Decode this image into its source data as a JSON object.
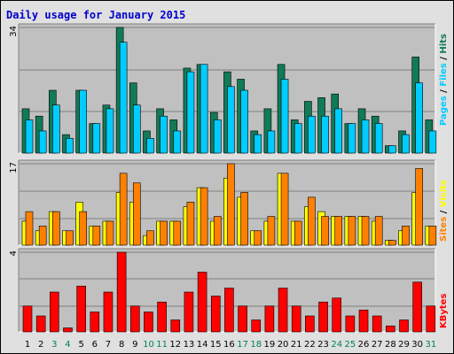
{
  "title": "Daily usage for January 2015",
  "colors": {
    "background": "#e0e0e0",
    "panel": "#c0c0c0",
    "gridline": "#808080",
    "hits": "#117a57",
    "files": "#00ccff",
    "pages": "#00ccff",
    "sites": "#ff8000",
    "visits": "#ffff00",
    "kbytes": "#ff0000",
    "weekend_day": "#00805c",
    "weekday": "#000000",
    "title": "#0000cc"
  },
  "chart_data": [
    {
      "type": "bar",
      "panel": "hits-files-pages",
      "max_label": "34",
      "ylim": [
        0,
        34
      ],
      "legend": [
        {
          "label": "Pages",
          "color": "#00ccff"
        },
        {
          "label": "Files",
          "color": "#00ccff"
        },
        {
          "label": "Hits",
          "color": "#117a57"
        }
      ],
      "categories": [
        "1",
        "2",
        "3",
        "4",
        "5",
        "6",
        "7",
        "8",
        "9",
        "10",
        "11",
        "12",
        "13",
        "14",
        "15",
        "16",
        "17",
        "18",
        "19",
        "20",
        "21",
        "22",
        "23",
        "24",
        "25",
        "26",
        "27",
        "28",
        "29",
        "30",
        "31"
      ],
      "series": [
        {
          "name": "Hits",
          "values": [
            12,
            10,
            17,
            5,
            17,
            8,
            13,
            34,
            19,
            6,
            12,
            9,
            23,
            24,
            11,
            22,
            20,
            6,
            12,
            24,
            9,
            14,
            15,
            16,
            8,
            12,
            10,
            2,
            6,
            26,
            9
          ]
        },
        {
          "name": "Files",
          "values": [
            9,
            6,
            13,
            4,
            17,
            8,
            12,
            30,
            13,
            4,
            10,
            6,
            22,
            24,
            9,
            18,
            17,
            5,
            6,
            20,
            8,
            10,
            10,
            12,
            8,
            9,
            8,
            2,
            5,
            19,
            6
          ]
        },
        {
          "name": "Pages",
          "values": [
            9,
            6,
            13,
            4,
            17,
            8,
            12,
            30,
            13,
            4,
            10,
            6,
            22,
            24,
            9,
            18,
            17,
            5,
            6,
            20,
            8,
            10,
            10,
            12,
            8,
            9,
            8,
            2,
            5,
            19,
            6
          ]
        }
      ]
    },
    {
      "type": "bar",
      "panel": "sites-visits",
      "max_label": "17",
      "ylim": [
        0,
        17
      ],
      "legend": [
        {
          "label": "Sites",
          "color": "#ff8000"
        },
        {
          "label": "Visits",
          "color": "#ffff00"
        }
      ],
      "categories": [
        "1",
        "2",
        "3",
        "4",
        "5",
        "6",
        "7",
        "8",
        "9",
        "10",
        "11",
        "12",
        "13",
        "14",
        "15",
        "16",
        "17",
        "18",
        "19",
        "20",
        "21",
        "22",
        "23",
        "24",
        "25",
        "26",
        "27",
        "28",
        "29",
        "30",
        "31"
      ],
      "series": [
        {
          "name": "Visits",
          "values": [
            5,
            3,
            7,
            3,
            9,
            4,
            5,
            11,
            9,
            2,
            5,
            5,
            8,
            12,
            5,
            14,
            10,
            3,
            5,
            15,
            5,
            8,
            7,
            6,
            6,
            6,
            5,
            1,
            3,
            11,
            4
          ]
        },
        {
          "name": "Sites",
          "values": [
            7,
            4,
            7,
            3,
            7,
            4,
            5,
            15,
            13,
            3,
            5,
            5,
            9,
            12,
            6,
            17,
            11,
            3,
            6,
            15,
            5,
            10,
            6,
            6,
            6,
            6,
            6,
            1,
            4,
            16,
            4
          ]
        }
      ]
    },
    {
      "type": "bar",
      "panel": "kbytes",
      "max_label": "4",
      "ylim": [
        0,
        4
      ],
      "legend": [
        {
          "label": "KBytes",
          "color": "#ff0000"
        }
      ],
      "categories": [
        "1",
        "2",
        "3",
        "4",
        "5",
        "6",
        "7",
        "8",
        "9",
        "10",
        "11",
        "12",
        "13",
        "14",
        "15",
        "16",
        "17",
        "18",
        "19",
        "20",
        "21",
        "22",
        "23",
        "24",
        "25",
        "26",
        "27",
        "28",
        "29",
        "30",
        "31"
      ],
      "series": [
        {
          "name": "KBytes",
          "values": [
            1.3,
            0.8,
            2.0,
            0.2,
            2.3,
            1.0,
            2.0,
            4.0,
            1.3,
            1.0,
            1.5,
            0.6,
            2.0,
            3.0,
            1.8,
            2.2,
            1.3,
            0.6,
            1.3,
            2.2,
            1.3,
            0.8,
            1.5,
            1.7,
            0.8,
            1.1,
            0.8,
            0.3,
            0.6,
            2.5,
            1.3
          ]
        }
      ]
    }
  ],
  "x_labels": [
    {
      "text": "1",
      "weekend": false
    },
    {
      "text": "2",
      "weekend": false
    },
    {
      "text": "3",
      "weekend": true
    },
    {
      "text": "4",
      "weekend": true
    },
    {
      "text": "5",
      "weekend": false
    },
    {
      "text": "6",
      "weekend": false
    },
    {
      "text": "7",
      "weekend": false
    },
    {
      "text": "8",
      "weekend": false
    },
    {
      "text": "9",
      "weekend": false
    },
    {
      "text": "10",
      "weekend": true
    },
    {
      "text": "11",
      "weekend": true
    },
    {
      "text": "12",
      "weekend": false
    },
    {
      "text": "13",
      "weekend": false
    },
    {
      "text": "14",
      "weekend": false
    },
    {
      "text": "15",
      "weekend": false
    },
    {
      "text": "16",
      "weekend": false
    },
    {
      "text": "17",
      "weekend": true
    },
    {
      "text": "18",
      "weekend": true
    },
    {
      "text": "19",
      "weekend": false
    },
    {
      "text": "20",
      "weekend": false
    },
    {
      "text": "21",
      "weekend": false
    },
    {
      "text": "22",
      "weekend": false
    },
    {
      "text": "23",
      "weekend": false
    },
    {
      "text": "24",
      "weekend": true
    },
    {
      "text": "25",
      "weekend": true
    },
    {
      "text": "26",
      "weekend": false
    },
    {
      "text": "27",
      "weekend": false
    },
    {
      "text": "28",
      "weekend": false
    },
    {
      "text": "29",
      "weekend": false
    },
    {
      "text": "30",
      "weekend": false
    },
    {
      "text": "31",
      "weekend": true
    }
  ]
}
